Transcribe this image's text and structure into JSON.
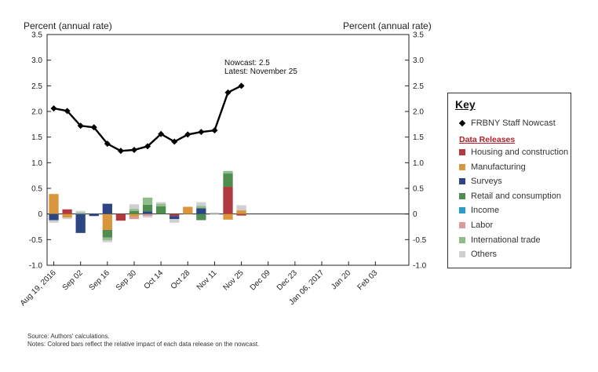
{
  "chart_data": {
    "type": "bar",
    "ylabel_left": "Percent (annual rate)",
    "ylabel_right": "Percent (annual rate)",
    "ylim": [
      -1.0,
      3.5
    ],
    "yticks": [
      "3.5",
      "3.0",
      "2.5",
      "2.0",
      "1.5",
      "1.0",
      "0.5",
      "0",
      "-0.5",
      "-1.0"
    ],
    "ytick_values": [
      3.5,
      3.0,
      2.5,
      2.0,
      1.5,
      1.0,
      0.5,
      0,
      -0.5,
      -1.0
    ],
    "xtick_labels": [
      "Aug 19, 2016",
      "Sep 02",
      "Sep 16",
      "Sep 30",
      "Oct 14",
      "Oct 28",
      "Nov 11",
      "Nov 25",
      "Dec 09",
      "Dec 23",
      "Jan 06, 2017",
      "Jan 20",
      "Feb 03"
    ],
    "weeks": [
      "Aug 19",
      "Aug 26",
      "Sep 02",
      "Sep 09",
      "Sep 16",
      "Sep 23",
      "Sep 30",
      "Oct 07",
      "Oct 14",
      "Oct 21",
      "Oct 28",
      "Nov 04",
      "Nov 11",
      "Nov 18",
      "Nov 25"
    ],
    "line_series": {
      "name": "FRBNY Staff Nowcast",
      "values": [
        2.06,
        2.01,
        1.72,
        1.69,
        1.37,
        1.23,
        1.25,
        1.32,
        1.56,
        1.41,
        1.55,
        1.6,
        1.63,
        2.37,
        2.5
      ]
    },
    "bar_series": [
      {
        "name": "Housing and construction",
        "color": "#b03a3f",
        "values": [
          0,
          0.09,
          0,
          0,
          0,
          -0.13,
          0,
          0,
          0,
          -0.04,
          0,
          0,
          0,
          0.53,
          -0.03
        ]
      },
      {
        "name": "Manufacturing",
        "color": "#d9963c",
        "values": [
          0.39,
          -0.07,
          0,
          0,
          -0.31,
          0,
          -0.05,
          0,
          0,
          0,
          0.14,
          0,
          0,
          -0.11,
          0.07
        ]
      },
      {
        "name": "Surveys",
        "color": "#2c4585",
        "values": [
          -0.12,
          0,
          -0.37,
          -0.04,
          0.2,
          0,
          0,
          0.05,
          0,
          -0.06,
          0,
          0.11,
          0,
          0,
          0
        ]
      },
      {
        "name": "Retail and consumption",
        "color": "#4f8c4f",
        "values": [
          0,
          0,
          0,
          0,
          -0.15,
          0,
          0.06,
          0.13,
          0.15,
          0,
          0,
          -0.12,
          0,
          0.26,
          0
        ]
      },
      {
        "name": "Income",
        "color": "#2a9bd1",
        "values": [
          0,
          0,
          0,
          0,
          0,
          0,
          0,
          0,
          0,
          0,
          0,
          0,
          0,
          0,
          0
        ]
      },
      {
        "name": "Labor",
        "color": "#d99a9c",
        "values": [
          0,
          0,
          0,
          0,
          0,
          0,
          -0.05,
          -0.04,
          0,
          0,
          0,
          0,
          0,
          0,
          0
        ]
      },
      {
        "name": "International trade",
        "color": "#8fbc8b",
        "values": [
          0,
          0,
          0.03,
          0,
          -0.05,
          0,
          0.04,
          0.14,
          0.05,
          0,
          0,
          0.05,
          0,
          0.05,
          0
        ]
      },
      {
        "name": "Others",
        "color": "#cfcfcf",
        "values": [
          -0.05,
          -0.03,
          0.03,
          0,
          -0.04,
          0,
          0.09,
          -0.03,
          0.03,
          -0.07,
          0,
          0.07,
          0.03,
          0,
          0.1
        ]
      }
    ],
    "annotation": {
      "line1": "Nowcast:  2.5",
      "line2": "Latest: November 25"
    },
    "legend_placement": "right",
    "grid": false
  },
  "key": {
    "title": "Key",
    "line_label": "FRBNY Staff Nowcast",
    "section_title": "Data Releases",
    "items": [
      {
        "label": "Housing and construction",
        "color": "#b03a3f"
      },
      {
        "label": "Manufacturing",
        "color": "#d9963c"
      },
      {
        "label": "Surveys",
        "color": "#2c4585"
      },
      {
        "label": "Retail and consumption",
        "color": "#4f8c4f"
      },
      {
        "label": "Income",
        "color": "#2a9bd1"
      },
      {
        "label": "Labor",
        "color": "#d99a9c"
      },
      {
        "label": "International trade",
        "color": "#8fbc8b"
      },
      {
        "label": "Others",
        "color": "#cfcfcf"
      }
    ]
  },
  "notes": {
    "source": "Source: Authors' calculations.",
    "notes": "Notes: Colored bars reflect the relative impact of each data release on the nowcast."
  }
}
